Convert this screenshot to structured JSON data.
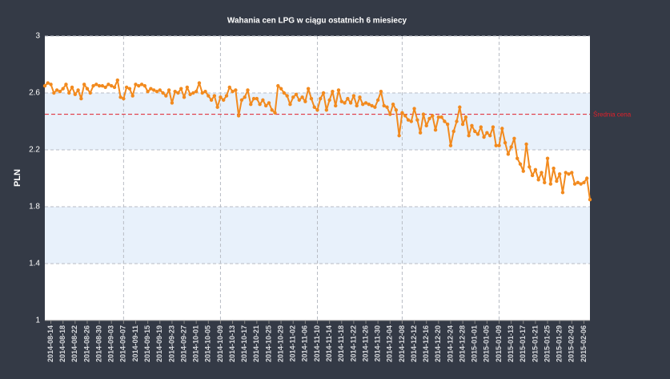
{
  "chart_data": {
    "type": "line",
    "title": "Wahania cen LPG w ciągu ostatnich 6 miesiecy",
    "y_label": "PLN",
    "ylim": [
      1,
      3
    ],
    "yticks": [
      1,
      1.4,
      1.8,
      2.2,
      2.6,
      3
    ],
    "xlim": [
      "2014-08-12",
      "2015-02-08"
    ],
    "xticks": [
      "2014-08-14",
      "2014-08-18",
      "2014-08-22",
      "2014-08-26",
      "2014-08-30",
      "2014-09-03",
      "2014-09-07",
      "2014-09-11",
      "2014-09-15",
      "2014-09-19",
      "2014-09-23",
      "2014-09-27",
      "2014-10-01",
      "2014-10-05",
      "2014-10-09",
      "2014-10-13",
      "2014-10-17",
      "2014-10-21",
      "2014-10-25",
      "2014-10-29",
      "2014-11-02",
      "2014-11-06",
      "2014-11-10",
      "2014-11-14",
      "2014-11-18",
      "2014-11-22",
      "2014-11-26",
      "2014-11-30",
      "2014-12-04",
      "2014-12-08",
      "2014-12-12",
      "2014-12-16",
      "2014-12-20",
      "2014-12-24",
      "2014-12-28",
      "2015-01-01",
      "2015-01-05",
      "2015-01-09",
      "2015-01-13",
      "2015-01-17",
      "2015-01-21",
      "2015-01-25",
      "2015-01-29",
      "2015-02-02",
      "2015-02-06"
    ],
    "x_grid": [
      "2014-09-07",
      "2014-10-09",
      "2014-11-10",
      "2014-12-08",
      "2015-01-09"
    ],
    "grid": true,
    "bands": true,
    "mean_line": {
      "label": "Średnia cena",
      "value": 2.45,
      "color": "#e0202a"
    },
    "x": [
      "2014-08-12",
      "2014-08-13",
      "2014-08-14",
      "2014-08-15",
      "2014-08-16",
      "2014-08-17",
      "2014-08-18",
      "2014-08-19",
      "2014-08-20",
      "2014-08-21",
      "2014-08-22",
      "2014-08-23",
      "2014-08-24",
      "2014-08-25",
      "2014-08-26",
      "2014-08-27",
      "2014-08-28",
      "2014-08-29",
      "2014-08-30",
      "2014-08-31",
      "2014-09-01",
      "2014-09-02",
      "2014-09-03",
      "2014-09-04",
      "2014-09-05",
      "2014-09-06",
      "2014-09-07",
      "2014-09-08",
      "2014-09-09",
      "2014-09-10",
      "2014-09-11",
      "2014-09-12",
      "2014-09-13",
      "2014-09-14",
      "2014-09-15",
      "2014-09-16",
      "2014-09-17",
      "2014-09-18",
      "2014-09-19",
      "2014-09-20",
      "2014-09-21",
      "2014-09-22",
      "2014-09-23",
      "2014-09-24",
      "2014-09-25",
      "2014-09-26",
      "2014-09-27",
      "2014-09-28",
      "2014-09-29",
      "2014-09-30",
      "2014-10-01",
      "2014-10-02",
      "2014-10-03",
      "2014-10-04",
      "2014-10-05",
      "2014-10-06",
      "2014-10-07",
      "2014-10-08",
      "2014-10-09",
      "2014-10-10",
      "2014-10-11",
      "2014-10-12",
      "2014-10-13",
      "2014-10-14",
      "2014-10-15",
      "2014-10-16",
      "2014-10-17",
      "2014-10-18",
      "2014-10-19",
      "2014-10-20",
      "2014-10-21",
      "2014-10-22",
      "2014-10-23",
      "2014-10-24",
      "2014-10-25",
      "2014-10-26",
      "2014-10-27",
      "2014-10-28",
      "2014-10-29",
      "2014-10-30",
      "2014-10-31",
      "2014-11-01",
      "2014-11-02",
      "2014-11-03",
      "2014-11-04",
      "2014-11-05",
      "2014-11-06",
      "2014-11-07",
      "2014-11-08",
      "2014-11-09",
      "2014-11-10",
      "2014-11-11",
      "2014-11-12",
      "2014-11-13",
      "2014-11-14",
      "2014-11-15",
      "2014-11-16",
      "2014-11-17",
      "2014-11-18",
      "2014-11-19",
      "2014-11-20",
      "2014-11-21",
      "2014-11-22",
      "2014-11-23",
      "2014-11-24",
      "2014-11-25",
      "2014-11-26",
      "2014-11-27",
      "2014-11-28",
      "2014-11-29",
      "2014-11-30",
      "2014-12-01",
      "2014-12-02",
      "2014-12-03",
      "2014-12-04",
      "2014-12-05",
      "2014-12-06",
      "2014-12-07",
      "2014-12-08",
      "2014-12-09",
      "2014-12-10",
      "2014-12-11",
      "2014-12-12",
      "2014-12-13",
      "2014-12-14",
      "2014-12-15",
      "2014-12-16",
      "2014-12-17",
      "2014-12-18",
      "2014-12-19",
      "2014-12-20",
      "2014-12-21",
      "2014-12-22",
      "2014-12-23",
      "2014-12-24",
      "2014-12-25",
      "2014-12-26",
      "2014-12-27",
      "2014-12-28",
      "2014-12-29",
      "2014-12-30",
      "2014-12-31",
      "2015-01-01",
      "2015-01-02",
      "2015-01-03",
      "2015-01-04",
      "2015-01-05",
      "2015-01-06",
      "2015-01-07",
      "2015-01-08",
      "2015-01-09",
      "2015-01-10",
      "2015-01-11",
      "2015-01-12",
      "2015-01-13",
      "2015-01-14",
      "2015-01-15",
      "2015-01-16",
      "2015-01-17",
      "2015-01-18",
      "2015-01-19",
      "2015-01-20",
      "2015-01-21",
      "2015-01-22",
      "2015-01-23",
      "2015-01-24",
      "2015-01-25",
      "2015-01-26",
      "2015-01-27",
      "2015-01-28",
      "2015-01-29",
      "2015-01-30",
      "2015-01-31",
      "2015-02-01",
      "2015-02-02",
      "2015-02-03",
      "2015-02-04",
      "2015-02-05",
      "2015-02-06",
      "2015-02-07",
      "2015-02-08"
    ],
    "series": [
      {
        "color": "#f28a1e",
        "values": [
          2.65,
          2.67,
          2.66,
          2.6,
          2.62,
          2.61,
          2.63,
          2.66,
          2.6,
          2.64,
          2.59,
          2.62,
          2.56,
          2.66,
          2.63,
          2.6,
          2.65,
          2.66,
          2.65,
          2.65,
          2.64,
          2.66,
          2.65,
          2.64,
          2.69,
          2.57,
          2.56,
          2.64,
          2.63,
          2.58,
          2.66,
          2.65,
          2.66,
          2.65,
          2.61,
          2.63,
          2.62,
          2.61,
          2.62,
          2.6,
          2.58,
          2.62,
          2.53,
          2.61,
          2.6,
          2.63,
          2.57,
          2.64,
          2.59,
          2.6,
          2.61,
          2.67,
          2.6,
          2.61,
          2.58,
          2.55,
          2.58,
          2.5,
          2.57,
          2.55,
          2.58,
          2.64,
          2.61,
          2.62,
          2.44,
          2.55,
          2.57,
          2.62,
          2.52,
          2.56,
          2.56,
          2.52,
          2.55,
          2.51,
          2.53,
          2.48,
          2.46,
          2.65,
          2.63,
          2.6,
          2.58,
          2.52,
          2.57,
          2.59,
          2.55,
          2.57,
          2.54,
          2.63,
          2.56,
          2.5,
          2.48,
          2.56,
          2.6,
          2.48,
          2.55,
          2.61,
          2.51,
          2.62,
          2.54,
          2.53,
          2.56,
          2.53,
          2.58,
          2.51,
          2.57,
          2.52,
          2.53,
          2.52,
          2.51,
          2.5,
          2.55,
          2.61,
          2.51,
          2.5,
          2.45,
          2.52,
          2.48,
          2.3,
          2.46,
          2.44,
          2.41,
          2.4,
          2.49,
          2.41,
          2.32,
          2.45,
          2.37,
          2.42,
          2.44,
          2.34,
          2.43,
          2.43,
          2.4,
          2.38,
          2.23,
          2.33,
          2.4,
          2.5,
          2.38,
          2.43,
          2.3,
          2.37,
          2.33,
          2.31,
          2.36,
          2.29,
          2.32,
          2.3,
          2.36,
          2.23,
          2.23,
          2.35,
          2.25,
          2.17,
          2.22,
          2.28,
          2.14,
          2.1,
          2.05,
          2.24,
          2.08,
          2.02,
          2.06,
          1.99,
          2.04,
          1.97,
          2.14,
          1.96,
          2.07,
          1.98,
          2.03,
          1.9,
          2.04,
          2.03,
          2.04,
          1.96,
          1.97,
          1.96,
          1.97,
          2.0,
          1.85
        ]
      }
    ]
  }
}
